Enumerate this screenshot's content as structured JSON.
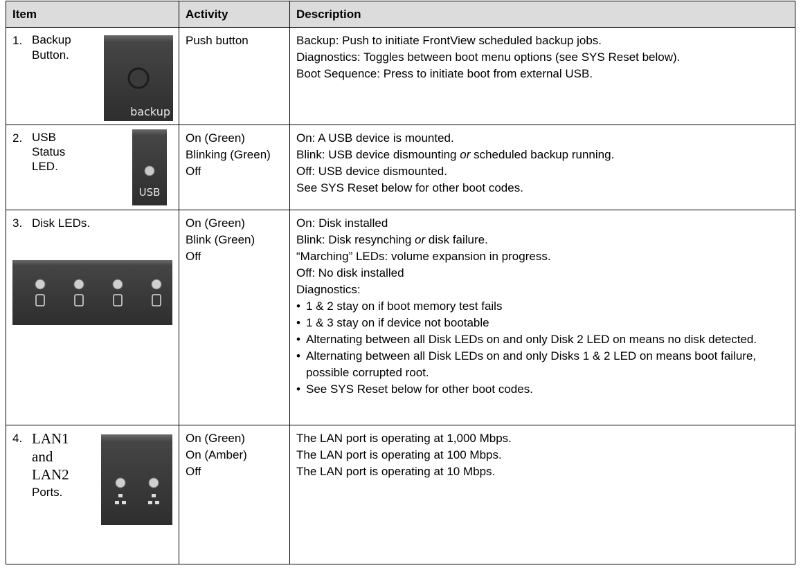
{
  "table": {
    "header": [
      "Item",
      "Activity",
      "Description"
    ],
    "rows": [
      {
        "number": "1.",
        "item": [
          "Backup",
          "Button."
        ],
        "panel_label": "backup",
        "activity": [
          "Push button"
        ],
        "description": [
          "Backup: Push to initiate FrontView scheduled backup jobs.",
          "Diagnostics: Toggles between boot menu options (see SYS Reset below).",
          "Boot Sequence: Press to initiate boot from external USB."
        ]
      },
      {
        "number": "2.",
        "item": [
          "USB",
          "Status",
          "LED."
        ],
        "panel_label": "USB",
        "activity": [
          "On (Green)",
          "Blinking (Green)",
          "Off"
        ],
        "description": [
          "On: A USB device is mounted.",
          {
            "before": "Blink: USB device dismounting ",
            "em": "or",
            "after": " scheduled backup running."
          },
          "Off: USB device dismounted.",
          "See SYS Reset below for other boot codes."
        ]
      },
      {
        "number": "3.",
        "item": [
          "Disk LEDs."
        ],
        "activity": [
          "On (Green)",
          "Blink (Green)",
          "Off"
        ],
        "description": [
          "On: Disk installed",
          {
            "before": "Blink: Disk resynching ",
            "em": "or",
            "after": " disk failure."
          },
          "“Marching” LEDs: volume expansion in progress.",
          "Off: No disk installed",
          "Diagnostics:",
          {
            "bullet": "•",
            "text": "1 & 2 stay on if boot memory test fails"
          },
          {
            "bullet": "•",
            "text": "1 & 3 stay on if device not bootable"
          },
          {
            "bullet": "•",
            "text": "Alternating between all Disk LEDs on and only Disk 2 LED on means no disk detected."
          },
          {
            "bullet": "•",
            "text": "Alternating between all Disk LEDs on and only Disks 1 & 2 LED on means boot failure, possible corrupted root."
          },
          {
            "bullet": "•",
            "text": "See SYS Reset below for other boot codes."
          }
        ]
      },
      {
        "number": "4.",
        "item": [
          "LAN1",
          "and",
          "LAN2",
          "Ports."
        ],
        "activity": [
          "On (Green)",
          "On (Amber)",
          "Off"
        ],
        "description": [
          "The LAN port is operating at 1,000 Mbps.",
          "The LAN port is operating at 100 Mbps.",
          "The LAN port is operating at 10 Mbps."
        ]
      }
    ]
  }
}
